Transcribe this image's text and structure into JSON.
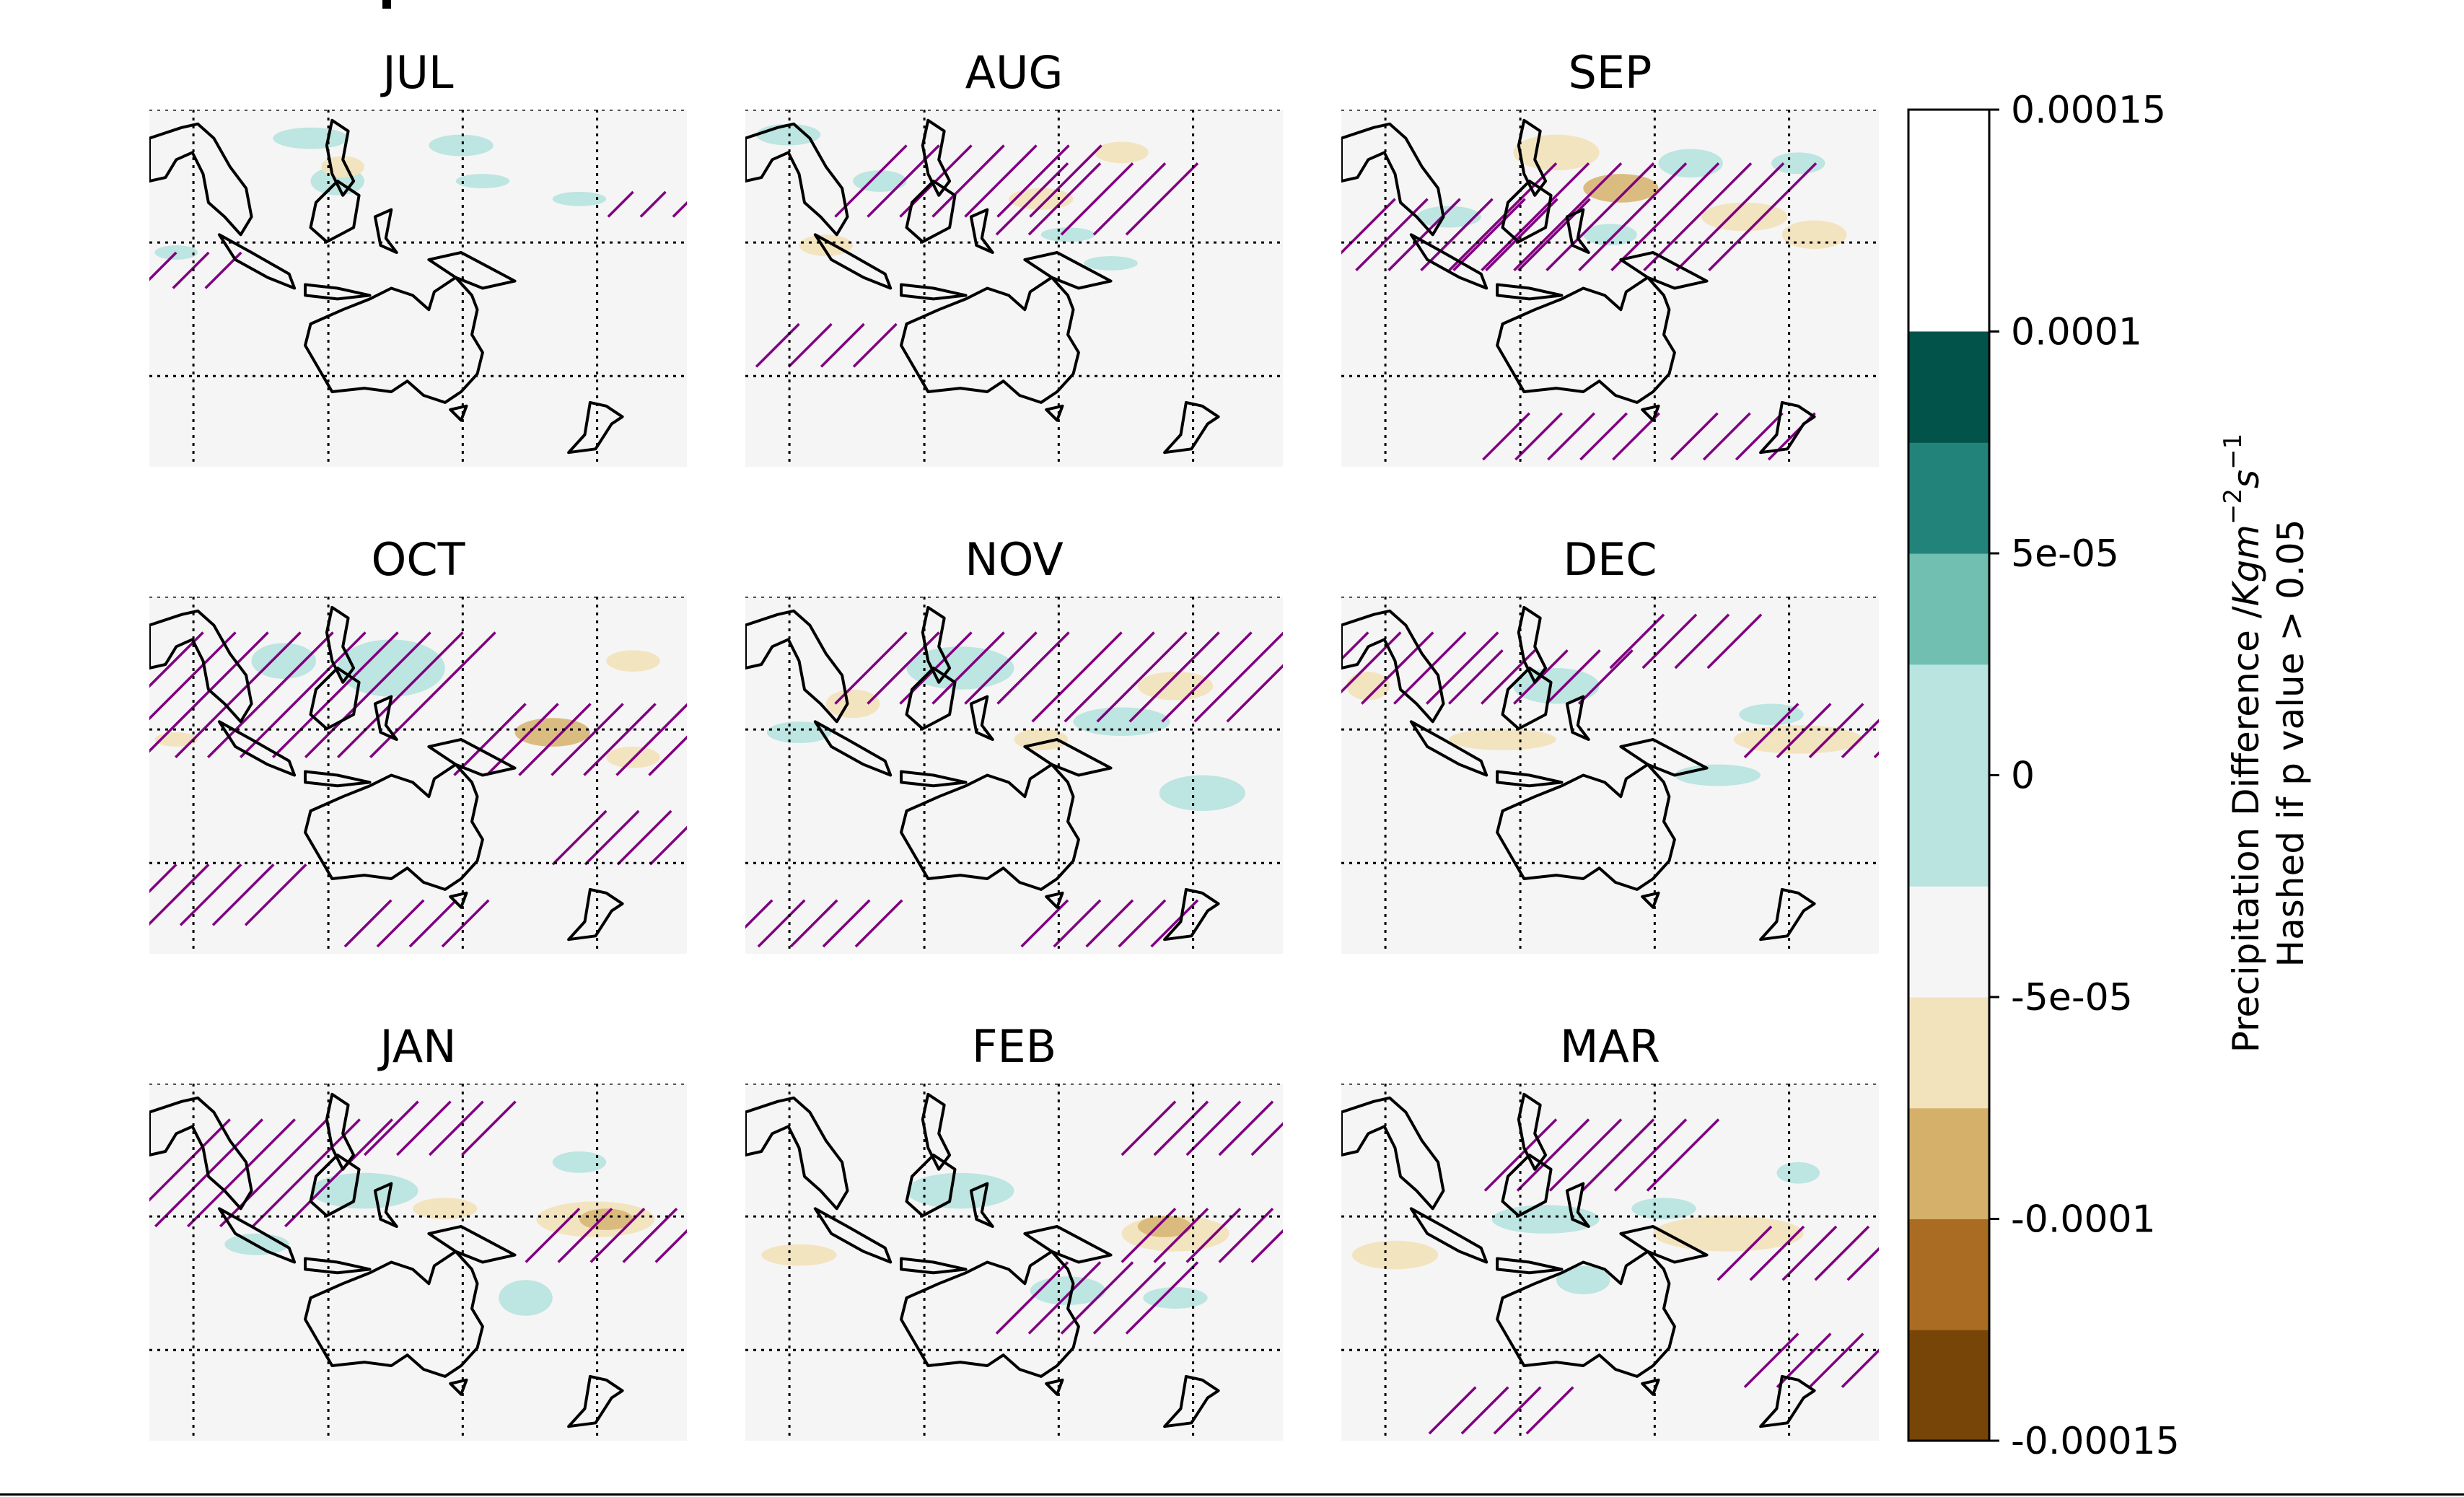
{
  "chart_data": {
    "type": "heatmap",
    "panels": [
      {
        "title": "JUL"
      },
      {
        "title": "AUG"
      },
      {
        "title": "SEP"
      },
      {
        "title": "OCT"
      },
      {
        "title": "NOV"
      },
      {
        "title": "DEC"
      },
      {
        "title": "JAN"
      },
      {
        "title": "FEB"
      },
      {
        "title": "MAR"
      }
    ],
    "colorbar": {
      "ticks": [
        "0.00015",
        "0.0001",
        "5e-05",
        "0",
        "-5e-05",
        "-0.0001",
        "-0.00015"
      ],
      "range": [
        -0.00015,
        0.00015
      ],
      "levels": [
        -0.00015,
        -0.000125,
        -0.0001,
        -7.5e-05,
        -5e-05,
        -2.5e-05,
        2.5e-05,
        5e-05,
        7.5e-05,
        0.0001,
        0.000125,
        0.00015
      ],
      "colors_bottom_to_top": [
        "#774508",
        "#aa6c22",
        "#d4b06a",
        "#f2e3bd",
        "#f5f5f5",
        "#b9e4df",
        "#70bfb1",
        "#21837a",
        "#02534a"
      ],
      "label_line1_prefix": "Precipitation Difference /",
      "label_units": "Kgm",
      "label_exp1": "−2",
      "label_units2": "s",
      "label_exp2": "−1",
      "label_line2": "Hashed if p value > 0.05"
    },
    "colors": {
      "land_background": "#f5f5f5",
      "positive_contour": "#b9e4df",
      "negative_contour": "#f2e3bd",
      "hatch": "#800080",
      "coastline": "#000000"
    }
  }
}
